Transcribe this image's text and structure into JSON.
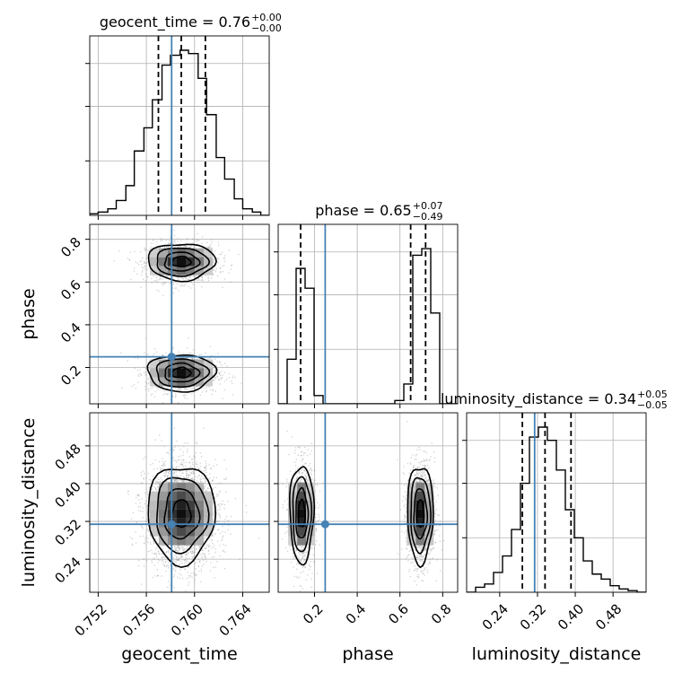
{
  "chart_data": {
    "type": "corner",
    "parameters": [
      "geocent_time",
      "phase",
      "luminosity_distance"
    ],
    "truths": [
      0.7581,
      0.25,
      0.314
    ],
    "titles": [
      {
        "label": "geocent_time = 0.76",
        "plus": "+0.00",
        "minus": "−0.00"
      },
      {
        "label": "phase = 0.65",
        "plus": "+0.07",
        "minus": "−0.49"
      },
      {
        "label": "luminosity_distance = 0.34",
        "plus": "+0.05",
        "minus": "−0.05"
      }
    ],
    "ranges": [
      [
        0.7513,
        0.7662
      ],
      [
        0.03,
        0.87
      ],
      [
        0.17,
        0.55
      ]
    ],
    "ticks": [
      {
        "values": [
          0.752,
          0.756,
          0.76,
          0.764
        ],
        "labels": [
          "0.752",
          "0.756",
          "0.760",
          "0.764"
        ]
      },
      {
        "values": [
          0.2,
          0.4,
          0.6,
          0.8
        ],
        "labels": [
          "0.2",
          "0.4",
          "0.6",
          "0.8"
        ]
      },
      {
        "values": [
          0.24,
          0.32,
          0.4,
          0.48
        ],
        "labels": [
          "0.24",
          "0.32",
          "0.40",
          "0.48"
        ]
      }
    ],
    "quantiles": [
      [
        0.757,
        0.7589,
        0.7609
      ],
      [
        0.135,
        0.65,
        0.72
      ],
      [
        0.288,
        0.336,
        0.391
      ]
    ],
    "histograms": [
      {
        "edges": [
          0.7513,
          0.752,
          0.7528,
          0.7535,
          0.7543,
          0.755,
          0.7558,
          0.7565,
          0.7573,
          0.758,
          0.7588,
          0.7595,
          0.7603,
          0.761,
          0.7618,
          0.7625,
          0.7633,
          0.764,
          0.7648,
          0.7655,
          0.7662
        ],
        "counts": [
          0.01,
          0.02,
          0.04,
          0.09,
          0.18,
          0.39,
          0.53,
          0.7,
          0.91,
          0.97,
          1.0,
          0.98,
          0.83,
          0.61,
          0.35,
          0.22,
          0.1,
          0.04,
          0.02,
          0.0
        ]
      },
      {
        "edges": [
          0.03,
          0.072,
          0.114,
          0.156,
          0.198,
          0.24,
          0.282,
          0.324,
          0.366,
          0.408,
          0.45,
          0.492,
          0.534,
          0.576,
          0.618,
          0.66,
          0.702,
          0.744,
          0.786,
          0.828,
          0.87
        ],
        "counts": [
          0.0,
          0.27,
          0.82,
          0.7,
          0.05,
          0.0,
          0.0,
          0.0,
          0.0,
          0.0,
          0.0,
          0.0,
          0.0,
          0.02,
          0.12,
          0.9,
          0.94,
          0.55,
          0.0,
          0.0
        ]
      },
      {
        "edges": [
          0.17,
          0.189,
          0.208,
          0.227,
          0.246,
          0.265,
          0.284,
          0.303,
          0.322,
          0.341,
          0.36,
          0.379,
          0.398,
          0.417,
          0.436,
          0.455,
          0.474,
          0.493,
          0.512,
          0.531,
          0.55
        ],
        "counts": [
          0.0,
          0.03,
          0.05,
          0.12,
          0.22,
          0.38,
          0.66,
          0.94,
          1.0,
          0.92,
          0.74,
          0.5,
          0.33,
          0.19,
          0.11,
          0.08,
          0.04,
          0.02,
          0.01,
          0.0
        ]
      }
    ],
    "blobs": [
      {
        "panel": [
          1,
          0
        ],
        "x": 0.7589,
        "y": 0.695,
        "sx": 0.0013,
        "sy": 0.04,
        "n": 1300
      },
      {
        "panel": [
          1,
          0
        ],
        "x": 0.7589,
        "y": 0.175,
        "sx": 0.0013,
        "sy": 0.04,
        "n": 1100
      },
      {
        "panel": [
          2,
          0
        ],
        "x": 0.7589,
        "y": 0.336,
        "sx": 0.0013,
        "sy": 0.048,
        "n": 2600
      },
      {
        "panel": [
          2,
          1
        ],
        "x": 0.14,
        "y": 0.336,
        "sx": 0.026,
        "sy": 0.048,
        "n": 1100
      },
      {
        "panel": [
          2,
          1
        ],
        "x": 0.695,
        "y": 0.336,
        "sx": 0.028,
        "sy": 0.048,
        "n": 1400
      }
    ],
    "grid": true,
    "truth_color": "#4682b4",
    "line_color": "#000000",
    "point_color": "#9a9a9a",
    "grid_color": "#b0b0b0"
  }
}
